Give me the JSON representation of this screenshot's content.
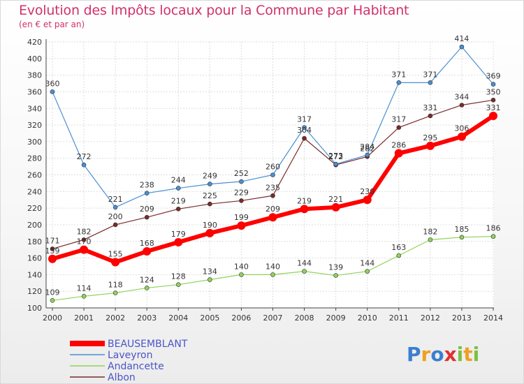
{
  "chart_data": {
    "type": "line",
    "title": "Evolution des Impôts locaux pour la Commune par Habitant",
    "subtitle": "(en € et par an)",
    "x": [
      2000,
      2001,
      2002,
      2003,
      2004,
      2005,
      2006,
      2007,
      2008,
      2009,
      2010,
      2011,
      2012,
      2013,
      2014
    ],
    "ylim": [
      100,
      420
    ],
    "yticks": [
      100,
      120,
      140,
      160,
      180,
      200,
      220,
      240,
      260,
      280,
      300,
      320,
      340,
      360,
      380,
      400,
      420
    ],
    "grid": true,
    "legend_position": "bottom-left",
    "series": [
      {
        "name": "BEAUSEMBLANT",
        "color": "#ff0000",
        "values": [
          159,
          170,
          155,
          168,
          179,
          190,
          199,
          209,
          219,
          221,
          230,
          286,
          295,
          306,
          331
        ]
      },
      {
        "name": "Laveyron",
        "color": "#4a8fd2",
        "values": [
          360,
          272,
          221,
          238,
          244,
          249,
          252,
          260,
          317,
          273,
          284,
          371,
          371,
          414,
          369
        ]
      },
      {
        "name": "Andancette",
        "color": "#8fd35a",
        "values": [
          109,
          114,
          118,
          124,
          128,
          134,
          140,
          140,
          144,
          139,
          144,
          163,
          182,
          185,
          186
        ]
      },
      {
        "name": "Albon",
        "color": "#7a2a2a",
        "values": [
          171,
          182,
          200,
          209,
          219,
          225,
          229,
          235,
          304,
          272,
          282,
          317,
          331,
          344,
          350
        ]
      }
    ]
  },
  "logo": {
    "text": "Proxiti"
  }
}
